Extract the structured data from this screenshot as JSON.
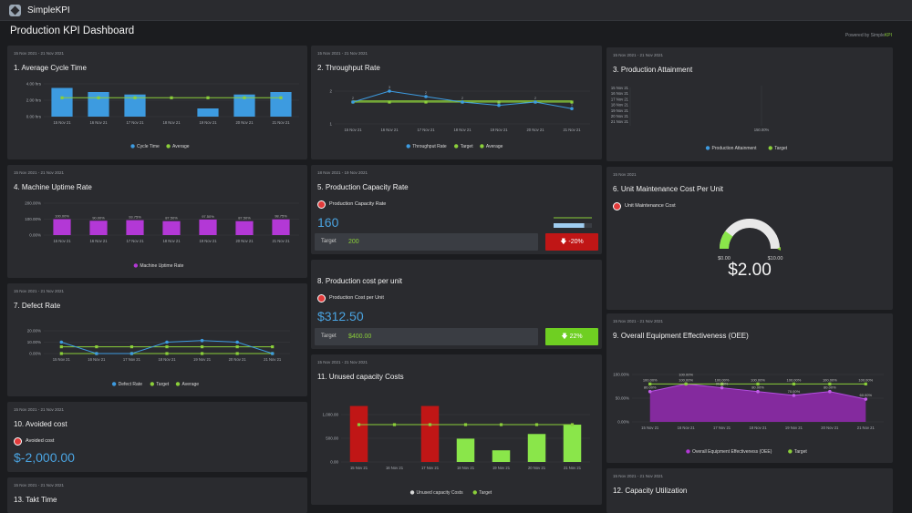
{
  "app": {
    "name": "SimpleKPI",
    "page_title": "Production KPI Dashboard",
    "powered_prefix": "Powered by Simple",
    "powered_brand": "KPI"
  },
  "colors": {
    "blue": "#3d9be0",
    "green": "#8bcf3a",
    "purple": "#b338d6",
    "red": "#c01616",
    "lightgreen": "#8ae64a",
    "panel": "#2a2b2f"
  },
  "cards": {
    "c1": {
      "range": "15 Nov 2021 - 21 Nov 2021",
      "title": "1. Average Cycle Time",
      "chart_data": {
        "type": "bar",
        "categories": [
          "15 Nov 21",
          "16 Nov 21",
          "17 Nov 21",
          "18 Nov 21",
          "19 Nov 21",
          "20 Nov 21",
          "21 Nov 21"
        ],
        "yticks": [
          "4.00 hrs",
          "2.00 hrs",
          "0.00 hrs"
        ],
        "ylim": [
          0,
          4
        ],
        "series": [
          {
            "name": "Cycle Time",
            "values": [
              3.5,
              3.0,
              2.7,
              0,
              1.0,
              2.7,
              3.0
            ]
          },
          {
            "name": "Average",
            "values": [
              2.3,
              2.3,
              2.3,
              2.3,
              2.3,
              2.3,
              2.3
            ]
          }
        ]
      }
    },
    "c2": {
      "range": "15 Nov 2021 - 21 Nov 2021",
      "title": "2. Throughput Rate",
      "chart_data": {
        "type": "line",
        "categories": [
          "15 Nov 21",
          "16 Nov 21",
          "17 Nov 21",
          "18 Nov 21",
          "19 Nov 21",
          "20 Nov 21",
          "21 Nov 21"
        ],
        "yticks": [
          "2",
          "1"
        ],
        "ylim": [
          0,
          3
        ],
        "series": [
          {
            "name": "Throughput Rate",
            "values": [
              2,
              3,
              2.5,
              2,
              1.7,
              2,
              1.4
            ]
          },
          {
            "name": "Target",
            "values": [
              2,
              2,
              2,
              2,
              2,
              2,
              2
            ]
          },
          {
            "name": "Average",
            "values": [
              2.1,
              2.1,
              2.1,
              2.1,
              2.1,
              2.1,
              2.1
            ]
          }
        ],
        "data_labels": [
          "2",
          "3",
          "2",
          "2",
          "2",
          "2",
          "1"
        ]
      }
    },
    "c3": {
      "range": "15 Nov 2021 - 21 Nov 2021",
      "title": "3. Production Attainment",
      "chart_data": {
        "type": "bar",
        "yticks": [
          "15 Nov 21",
          "16 Nov 21",
          "17 Nov 21",
          "18 Nov 21",
          "19 Nov 21",
          "20 Nov 21",
          "21 Nov 21"
        ],
        "xtick": "150.00%",
        "series": [
          {
            "name": "Production Attainment"
          },
          {
            "name": "Target"
          }
        ]
      }
    },
    "c4": {
      "range": "15 Nov 2021 - 21 Nov 2021",
      "title": "4. Machine Uptime Rate",
      "chart_data": {
        "type": "bar",
        "categories": [
          "15 Nov 21",
          "16 Nov 21",
          "17 Nov 21",
          "18 Nov 21",
          "19 Nov 21",
          "20 Nov 21",
          "21 Nov 21"
        ],
        "yticks": [
          "200.00%",
          "100.00%",
          "0.00%"
        ],
        "ylim": [
          0,
          200
        ],
        "series": [
          {
            "name": "Machine Uptime Rate",
            "values": [
              100.0,
              90.0,
              93.75,
              87.5,
              97.5,
              87.5,
              98.75
            ]
          }
        ],
        "data_labels": [
          "100.00%",
          "90.00%",
          "93.75%",
          "87.50%",
          "97.50%",
          "87.50%",
          "98.75%"
        ]
      }
    },
    "c5": {
      "range": "18 Nov 2021 - 19 Nov 2021",
      "title": "5. Production Capacity Rate",
      "kpi_label": "Production Capacity Rate",
      "value": "160",
      "target_label": "Target",
      "target_value": "200",
      "delta": "-20%",
      "progress": 0.8
    },
    "c6": {
      "range": "15 Nov 2021",
      "title": "6. Unit Maintenance Cost Per Unit",
      "kpi_label": "Unit Maintenance Cost",
      "gauge_min": "$0.00",
      "gauge_max": "$10.00",
      "value": "$2.00",
      "gauge_fraction": 0.2
    },
    "c7": {
      "range": "15 Nov 2021 - 21 Nov 2021",
      "title": "7. Defect Rate",
      "chart_data": {
        "type": "line",
        "categories": [
          "15 Nov 21",
          "16 Nov 21",
          "17 Nov 21",
          "18 Nov 21",
          "19 Nov 21",
          "20 Nov 21",
          "21 Nov 21"
        ],
        "yticks": [
          "20.00%",
          "10.00%",
          "0.00%"
        ],
        "ylim": [
          0,
          25
        ],
        "series": [
          {
            "name": "Defect Rate",
            "values": [
              12.5,
              0,
              0,
              12.5,
              14.3,
              12.5,
              0
            ]
          },
          {
            "name": "Target",
            "values": [
              0,
              0,
              0,
              0,
              0,
              0,
              0
            ]
          },
          {
            "name": "Average",
            "values": [
              7.4,
              7.4,
              7.4,
              7.4,
              7.4,
              7.4,
              7.4
            ]
          }
        ]
      }
    },
    "c8": {
      "title": "8. Production cost per unit",
      "kpi_label": "Production Cost per Unit",
      "value": "$312.50",
      "target_label": "Target",
      "target_value": "$400.00",
      "delta": "22%"
    },
    "c9": {
      "range": "15 Nov 2021 - 21 Nov 2021",
      "title": "9. Overall Equipment Effectiveness (OEE)",
      "chart_data": {
        "type": "area",
        "categories": [
          "15 Nov 21",
          "16 Nov 21",
          "17 Nov 21",
          "18 Nov 21",
          "19 Nov 21",
          "20 Nov 21",
          "21 Nov 21"
        ],
        "yticks": [
          "100.00%",
          "50.00%",
          "0.00%"
        ],
        "ylim": [
          0,
          125
        ],
        "series": [
          {
            "name": "Overall Equipment Effectiveness (OEE)",
            "values": [
              80.0,
              100.0,
              90.0,
              80.0,
              70.0,
              80.0,
              60.0
            ]
          },
          {
            "name": "Target",
            "values": [
              100,
              100,
              100,
              100,
              100,
              100,
              100
            ]
          }
        ],
        "data_labels": [
          "80.00%",
          "100.00%",
          "90.00%",
          "80.00%",
          "70.00%",
          "80.00%",
          "60.00%"
        ],
        "target_labels": [
          "100.00%",
          "100.00%",
          "100.00%",
          "100.00%",
          "100.00%",
          "100.00%",
          "100.00%"
        ]
      }
    },
    "c10": {
      "range": "15 Nov 2021 - 21 Nov 2021",
      "title": "10. Avoided cost",
      "kpi_label": "Avoided cost",
      "value": "$-2,000.00"
    },
    "c11": {
      "range": "15 Nov 2021 - 21 Nov 2021",
      "title": "11. Unused capacity Costs",
      "chart_data": {
        "type": "bar",
        "categories": [
          "15 Nov 21",
          "16 Nov 21",
          "17 Nov 21",
          "18 Nov 21",
          "19 Nov 21",
          "20 Nov 21",
          "21 Nov 21"
        ],
        "yticks": [
          "1,000.00",
          "500.00",
          "0.00"
        ],
        "ylim": [
          0,
          1250
        ],
        "series": [
          {
            "name": "Unused capacity Costs",
            "values": [
              1200,
              0,
              1200,
              500,
              250,
              600,
              800
            ]
          },
          {
            "name": "Target",
            "values": [
              800,
              800,
              800,
              800,
              800,
              800,
              800
            ]
          }
        ]
      }
    },
    "c12": {
      "range": "15 Nov 2021 - 21 Nov 2021",
      "title": "12. Capacity Utilization"
    },
    "c13": {
      "range": "15 Nov 2021 - 21 Nov 2021",
      "title": "13. Takt Time"
    }
  }
}
